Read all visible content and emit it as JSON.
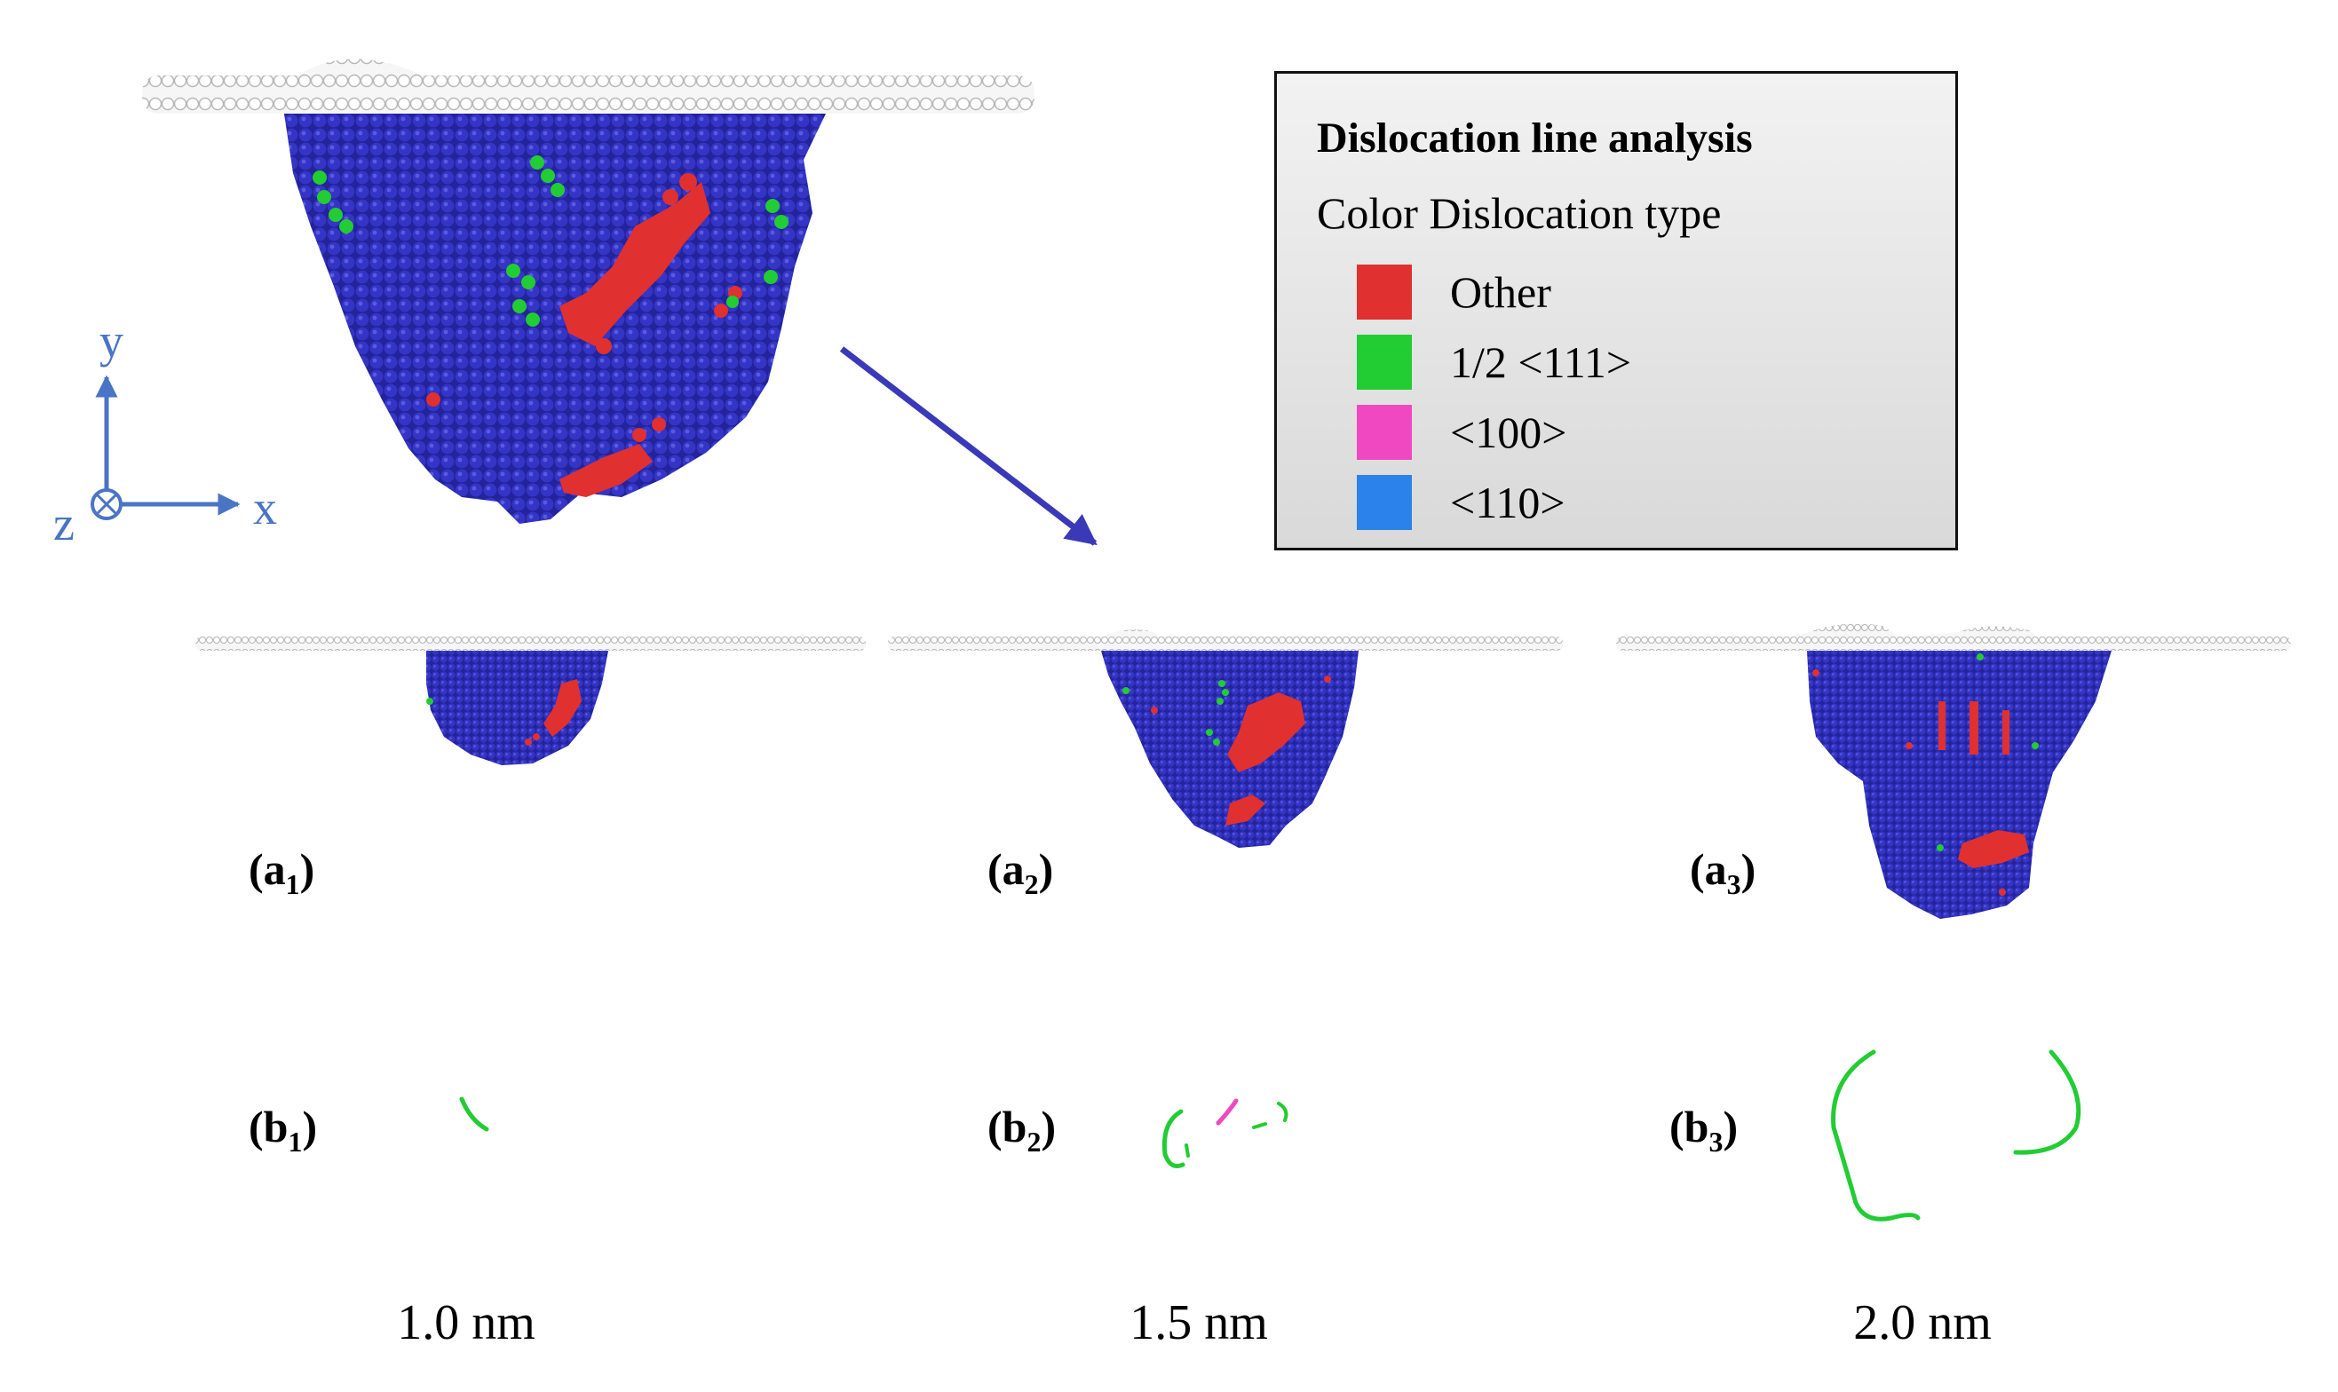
{
  "legend": {
    "title": "Dislocation line analysis",
    "header": "Color Dislocation type",
    "items": [
      {
        "label": "Other",
        "color": "#e03030"
      },
      {
        "label": "1/2 <111>",
        "color": "#22cc33"
      },
      {
        "label": "<100>",
        "color": "#f048c0"
      },
      {
        "label": "<110>",
        "color": "#2a82ea"
      }
    ]
  },
  "axes": {
    "y": "y",
    "x": "x",
    "z": "z"
  },
  "panels": {
    "a1": {
      "base": "(a",
      "sub": "1",
      "close": ")"
    },
    "a2": {
      "base": "(a",
      "sub": "2",
      "close": ")"
    },
    "a3": {
      "base": "(a",
      "sub": "3",
      "close": ")"
    },
    "b1": {
      "base": "(b",
      "sub": "1",
      "close": ")"
    },
    "b2": {
      "base": "(b",
      "sub": "2",
      "close": ")"
    },
    "b3": {
      "base": "(b",
      "sub": "3",
      "close": ")"
    }
  },
  "sizes": [
    "1.0 nm",
    "1.5 nm",
    "2.0 nm"
  ],
  "colors": {
    "matrix_atoms": "#3535c8",
    "surface_atoms": "#e8e8e8",
    "arrow": "#3a3ab8",
    "axis": "#4a74c4",
    "other": "#e03030",
    "half111": "#22cc33",
    "d100": "#f048c0"
  }
}
